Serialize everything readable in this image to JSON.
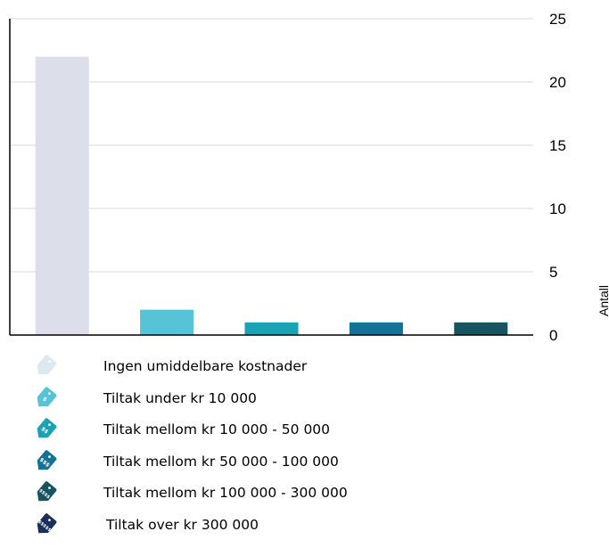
{
  "chart_data": {
    "type": "bar",
    "categories": [
      "Ingen umiddelbare kostnader",
      "Tiltak under kr 10 000",
      "Tiltak mellom kr 10 000 - 50 000",
      "Tiltak mellom kr 50 000 - 100 000",
      "Tiltak mellom kr 100 000 - 300 000"
    ],
    "values": [
      22,
      2,
      1,
      1,
      1
    ],
    "colors": [
      "#dcdfe9",
      "#56c3d7",
      "#1aa3b4",
      "#137396",
      "#16555f"
    ],
    "ylabel": "Antall",
    "ylim": [
      0,
      25
    ],
    "yticks": [
      0,
      5,
      10,
      15,
      20,
      25
    ],
    "grid": true,
    "y_axis_side": "right"
  },
  "legend": [
    {
      "label": "Ingen umiddelbare kostnader",
      "color": "#dde9f0",
      "icon": "price-tag-icon",
      "tag_text": ""
    },
    {
      "label": "Tiltak under kr 10 000",
      "color": "#56c3d7",
      "icon": "price-tag-icon",
      "tag_text": "$"
    },
    {
      "label": "Tiltak mellom kr 10 000 - 50 000",
      "color": "#1aa3b4",
      "icon": "price-tag-icon",
      "tag_text": "$$"
    },
    {
      "label": "Tiltak mellom kr 50 000 - 100 000",
      "color": "#137396",
      "icon": "price-tag-icon",
      "tag_text": "$$$"
    },
    {
      "label": "Tiltak mellom kr 100 000 - 300 000",
      "color": "#16555f",
      "icon": "price-tag-icon",
      "tag_text": "$$$$"
    },
    {
      "label": "Tiltak over kr  300 000",
      "color": "#1a2f5c",
      "icon": "price-tag-icon",
      "tag_text": "$$$$$"
    }
  ]
}
